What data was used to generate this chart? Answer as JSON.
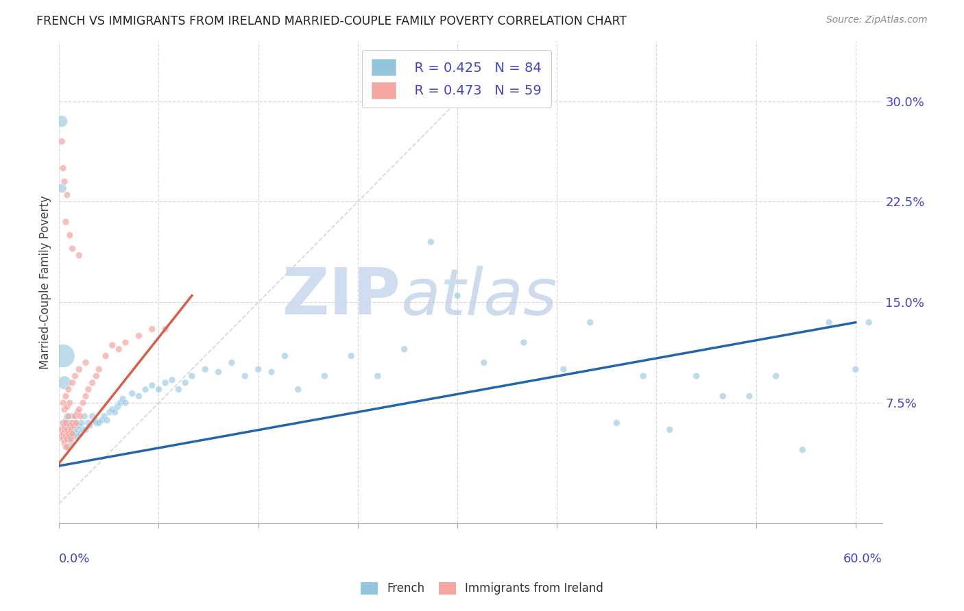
{
  "title": "FRENCH VS IMMIGRANTS FROM IRELAND MARRIED-COUPLE FAMILY POVERTY CORRELATION CHART",
  "source": "Source: ZipAtlas.com",
  "ylabel": "Married-Couple Family Poverty",
  "ytick_vals": [
    0.075,
    0.15,
    0.225,
    0.3
  ],
  "ytick_labels": [
    "7.5%",
    "15.0%",
    "22.5%",
    "30.0%"
  ],
  "xlim": [
    0.0,
    0.62
  ],
  "ylim": [
    -0.015,
    0.345
  ],
  "legend_r1": "R = 0.425",
  "legend_n1": "N = 84",
  "legend_r2": "R = 0.473",
  "legend_n2": "N = 59",
  "blue_color": "#92c5de",
  "pink_color": "#f4a6a0",
  "blue_line_color": "#2166ac",
  "pink_line_color": "#d6604d",
  "diagonal_color": "#cccccc",
  "background_color": "#ffffff",
  "grid_color": "#d9d9d9",
  "label_color": "#4444bb",
  "title_color": "#222222",
  "source_color": "#888888",
  "french_x": [
    0.003,
    0.003,
    0.004,
    0.005,
    0.006,
    0.006,
    0.007,
    0.007,
    0.008,
    0.008,
    0.009,
    0.009,
    0.01,
    0.01,
    0.011,
    0.012,
    0.012,
    0.013,
    0.014,
    0.015,
    0.016,
    0.017,
    0.018,
    0.019,
    0.02,
    0.022,
    0.023,
    0.025,
    0.027,
    0.028,
    0.03,
    0.032,
    0.034,
    0.036,
    0.038,
    0.04,
    0.042,
    0.044,
    0.046,
    0.048,
    0.05,
    0.055,
    0.06,
    0.065,
    0.07,
    0.075,
    0.08,
    0.085,
    0.09,
    0.095,
    0.1,
    0.11,
    0.12,
    0.13,
    0.14,
    0.15,
    0.16,
    0.17,
    0.18,
    0.2,
    0.22,
    0.24,
    0.26,
    0.28,
    0.3,
    0.32,
    0.35,
    0.38,
    0.4,
    0.42,
    0.44,
    0.46,
    0.48,
    0.5,
    0.52,
    0.54,
    0.56,
    0.58,
    0.6,
    0.61,
    0.003,
    0.004,
    0.002,
    0.002
  ],
  "french_y": [
    0.058,
    0.055,
    0.06,
    0.062,
    0.05,
    0.065,
    0.048,
    0.055,
    0.052,
    0.06,
    0.045,
    0.058,
    0.05,
    0.065,
    0.055,
    0.052,
    0.06,
    0.05,
    0.055,
    0.058,
    0.052,
    0.06,
    0.055,
    0.065,
    0.055,
    0.06,
    0.058,
    0.065,
    0.062,
    0.06,
    0.06,
    0.062,
    0.065,
    0.062,
    0.068,
    0.07,
    0.068,
    0.072,
    0.075,
    0.078,
    0.075,
    0.082,
    0.08,
    0.085,
    0.088,
    0.085,
    0.09,
    0.092,
    0.085,
    0.09,
    0.095,
    0.1,
    0.098,
    0.105,
    0.095,
    0.1,
    0.098,
    0.11,
    0.085,
    0.095,
    0.11,
    0.095,
    0.115,
    0.195,
    0.155,
    0.105,
    0.12,
    0.1,
    0.135,
    0.06,
    0.095,
    0.055,
    0.095,
    0.08,
    0.08,
    0.095,
    0.04,
    0.135,
    0.1,
    0.135,
    0.11,
    0.09,
    0.285,
    0.235
  ],
  "french_sizes": [
    60,
    60,
    50,
    50,
    50,
    50,
    50,
    50,
    50,
    50,
    50,
    50,
    50,
    50,
    50,
    50,
    50,
    50,
    50,
    50,
    50,
    50,
    50,
    50,
    50,
    50,
    50,
    50,
    50,
    50,
    50,
    50,
    50,
    50,
    50,
    50,
    50,
    50,
    50,
    50,
    50,
    50,
    50,
    50,
    50,
    50,
    50,
    50,
    50,
    50,
    50,
    50,
    50,
    50,
    50,
    50,
    50,
    50,
    50,
    50,
    50,
    50,
    50,
    50,
    50,
    50,
    50,
    50,
    50,
    50,
    50,
    50,
    50,
    50,
    50,
    50,
    50,
    50,
    50,
    50,
    600,
    200,
    150,
    100
  ],
  "ireland_x": [
    0.002,
    0.002,
    0.003,
    0.003,
    0.003,
    0.004,
    0.004,
    0.004,
    0.005,
    0.005,
    0.005,
    0.006,
    0.006,
    0.006,
    0.007,
    0.007,
    0.008,
    0.008,
    0.009,
    0.009,
    0.01,
    0.01,
    0.011,
    0.012,
    0.013,
    0.014,
    0.015,
    0.016,
    0.018,
    0.02,
    0.022,
    0.025,
    0.028,
    0.03,
    0.035,
    0.04,
    0.045,
    0.05,
    0.06,
    0.07,
    0.08,
    0.003,
    0.004,
    0.005,
    0.006,
    0.007,
    0.008,
    0.01,
    0.012,
    0.015,
    0.02,
    0.002,
    0.003,
    0.004,
    0.005,
    0.006,
    0.008,
    0.01,
    0.015
  ],
  "ireland_y": [
    0.055,
    0.05,
    0.052,
    0.048,
    0.06,
    0.055,
    0.045,
    0.058,
    0.05,
    0.042,
    0.06,
    0.048,
    0.055,
    0.042,
    0.052,
    0.065,
    0.05,
    0.058,
    0.055,
    0.048,
    0.052,
    0.06,
    0.058,
    0.065,
    0.06,
    0.068,
    0.07,
    0.065,
    0.075,
    0.08,
    0.085,
    0.09,
    0.095,
    0.1,
    0.11,
    0.118,
    0.115,
    0.12,
    0.125,
    0.13,
    0.13,
    0.075,
    0.07,
    0.08,
    0.072,
    0.085,
    0.075,
    0.09,
    0.095,
    0.1,
    0.105,
    0.27,
    0.25,
    0.24,
    0.21,
    0.23,
    0.2,
    0.19,
    0.185
  ],
  "ireland_sizes": [
    50,
    50,
    50,
    50,
    50,
    50,
    50,
    50,
    50,
    50,
    50,
    50,
    50,
    50,
    50,
    50,
    50,
    50,
    50,
    50,
    50,
    50,
    50,
    50,
    50,
    50,
    50,
    50,
    50,
    50,
    50,
    50,
    50,
    50,
    50,
    50,
    50,
    50,
    50,
    50,
    50,
    50,
    50,
    50,
    50,
    50,
    50,
    50,
    50,
    50,
    50,
    50,
    50,
    50,
    50,
    50,
    50,
    50,
    50
  ],
  "blue_regline": [
    [
      0.0,
      0.6
    ],
    [
      0.028,
      0.135
    ]
  ],
  "pink_regline": [
    [
      0.0,
      0.1
    ],
    [
      0.03,
      0.155
    ]
  ]
}
